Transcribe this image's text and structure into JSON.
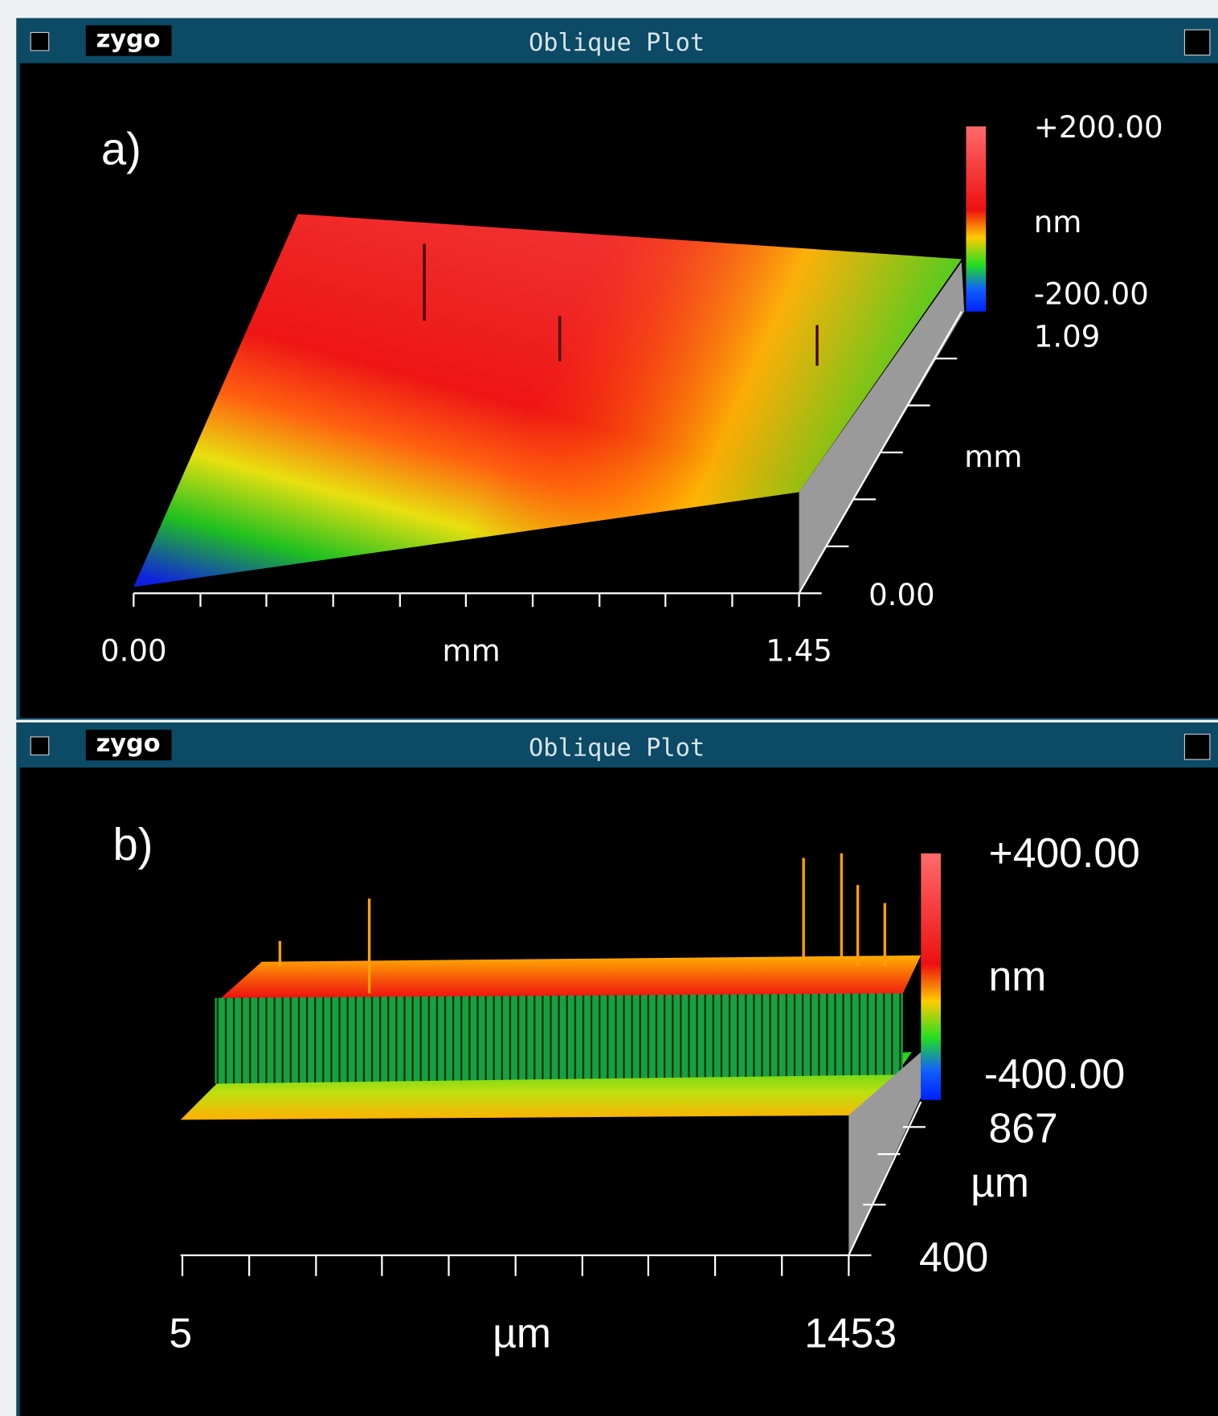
{
  "windows": [
    {
      "title": "Oblique Plot",
      "logo": "zygo",
      "label": "a)",
      "colorbar": {
        "max": "+200.00",
        "unit": "nm",
        "min": "-200.00"
      },
      "y_axis": {
        "max": "1.09",
        "unit": "mm",
        "min": "0.00"
      },
      "x_axis": {
        "min": "0.00",
        "unit": "mm",
        "max": "1.45"
      }
    },
    {
      "title": "Oblique Plot",
      "logo": "zygo",
      "label": "b)",
      "colorbar": {
        "max": "+400.00",
        "unit": "nm",
        "min": "-400.00"
      },
      "y_axis": {
        "max": "867",
        "unit": "µm",
        "min": "400"
      },
      "x_axis": {
        "min": "5",
        "unit": "µm",
        "max": "1453"
      }
    }
  ]
}
